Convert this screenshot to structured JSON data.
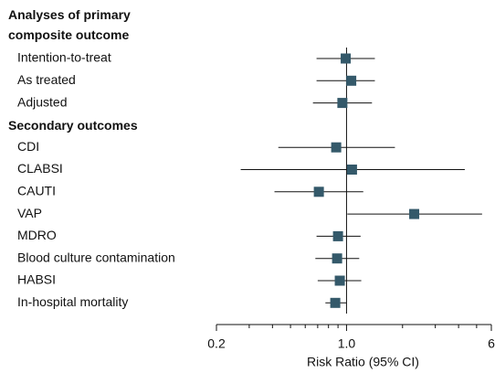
{
  "chart_data": {
    "type": "forest",
    "x_label": "Risk Ratio (95% CI)",
    "log_x": true,
    "xlim": [
      0.2,
      6
    ],
    "xticks": [
      0.2,
      {
        "value": 1,
        "label": "1.0"
      },
      6
    ],
    "xticks_minor": [
      0.3,
      0.4,
      0.5,
      0.6,
      0.7,
      0.8,
      0.9,
      2,
      3,
      4,
      5
    ],
    "reference": 1,
    "color": "#34596a",
    "groups": [
      {
        "label": "Analyses of primary composite outcome",
        "rows": [
          {
            "name": "Intention-to-treat",
            "value": 0.99,
            "lower": 0.69,
            "upper": 1.42
          },
          {
            "name": "As treated",
            "value": 1.06,
            "lower": 0.69,
            "upper": 1.42
          },
          {
            "name": "Adjusted",
            "value": 0.95,
            "lower": 0.66,
            "upper": 1.37
          }
        ]
      },
      {
        "label": "Secondary outcomes",
        "rows": [
          {
            "name": "CDI",
            "value": 0.88,
            "lower": 0.43,
            "upper": 1.82
          },
          {
            "name": "CLABSI",
            "value": 1.07,
            "lower": 0.27,
            "upper": 4.32
          },
          {
            "name": "CAUTI",
            "value": 0.71,
            "lower": 0.41,
            "upper": 1.23
          },
          {
            "name": "VAP",
            "value": 2.31,
            "lower": 1.01,
            "upper": 5.35
          },
          {
            "name": "MDRO",
            "value": 0.9,
            "lower": 0.69,
            "upper": 1.19
          },
          {
            "name": "Blood culture contamination",
            "value": 0.89,
            "lower": 0.68,
            "upper": 1.17
          },
          {
            "name": "HABSI",
            "value": 0.92,
            "lower": 0.7,
            "upper": 1.2
          },
          {
            "name": "In-hospital mortality",
            "value": 0.87,
            "lower": 0.77,
            "upper": 1.0
          }
        ]
      }
    ]
  }
}
